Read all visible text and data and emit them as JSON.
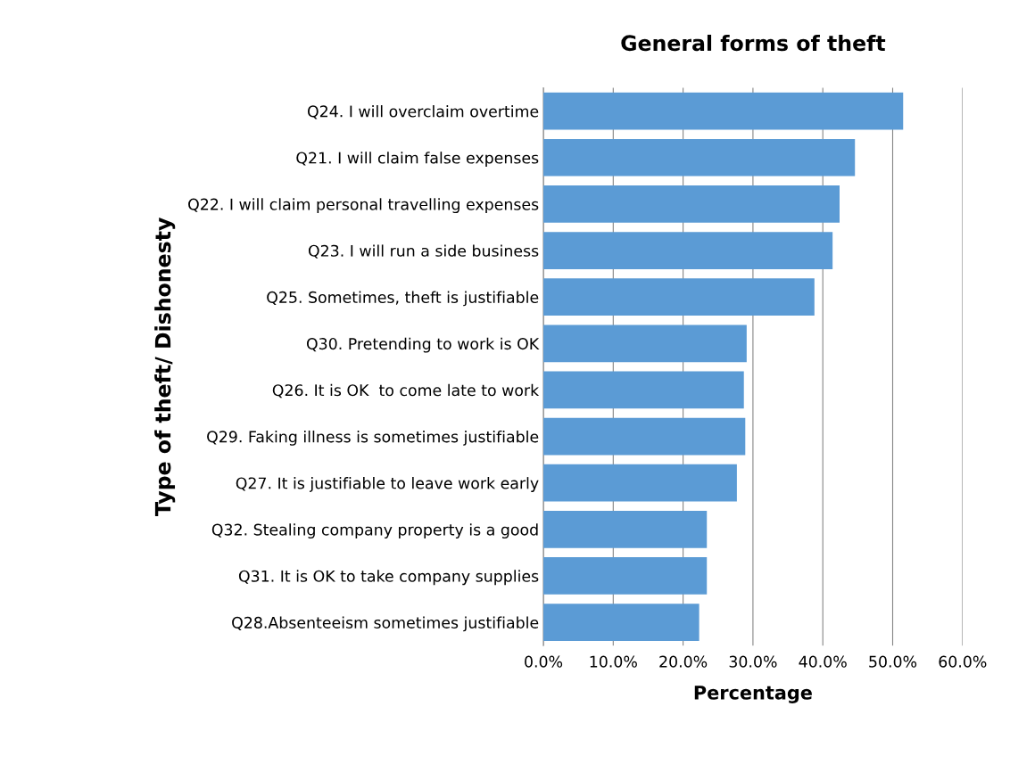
{
  "chart_data": {
    "type": "bar",
    "orientation": "horizontal",
    "title": "General forms of theft",
    "xlabel": "Percentage",
    "ylabel": "Type of theft/ Dishonesty",
    "categories": [
      "Q24. I will overclaim overtime",
      "Q21. I will claim false expenses",
      "Q22. I will claim personal travelling expenses",
      "Q23. I will run a side business",
      "Q25. Sometimes, theft is justifiable",
      "Q30. Pretending to work is OK",
      "Q26. It is OK  to come late to work",
      "Q29. Faking illness is sometimes justifiable",
      "Q27. It is justifiable to leave work early",
      "Q32. Stealing company property is a good",
      "Q31. It is OK to take company supplies",
      "Q28.Absenteeism sometimes justifiable"
    ],
    "values": [
      51.5,
      44.6,
      42.4,
      41.4,
      38.8,
      29.1,
      28.7,
      28.9,
      27.7,
      23.4,
      23.4,
      22.3
    ],
    "color": "#5b9bd5",
    "xlim": [
      0,
      60
    ],
    "xticks": [
      {
        "value": 0,
        "label": "0.0%"
      },
      {
        "value": 10,
        "label": "10.0%"
      },
      {
        "value": 20,
        "label": "20.0%"
      },
      {
        "value": 30,
        "label": "30.0%"
      },
      {
        "value": 40,
        "label": "40.0%"
      },
      {
        "value": 50,
        "label": "50.0%"
      },
      {
        "value": 60,
        "label": "60.0%"
      }
    ],
    "grid": "x",
    "legend": false
  }
}
